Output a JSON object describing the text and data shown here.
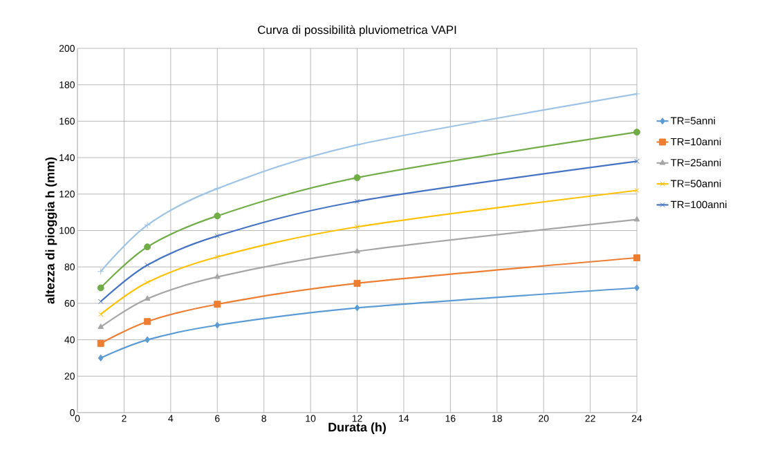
{
  "chart_data": {
    "type": "line",
    "title": "Curva di possibilità pluviometrica VAPI",
    "xlabel": "Durata (h)",
    "ylabel": "altezza di pioggia h (mm)",
    "x": [
      1,
      3,
      6,
      12,
      24
    ],
    "series": [
      {
        "name": "TR=5anni",
        "color": "#5b9bd5",
        "marker": "diamond",
        "values": [
          30,
          40,
          48,
          57.5,
          68.5
        ]
      },
      {
        "name": "TR=10anni",
        "color": "#ed7d31",
        "marker": "square",
        "values": [
          38,
          50,
          59.5,
          71,
          85
        ]
      },
      {
        "name": "TR=25anni",
        "color": "#a5a5a5",
        "marker": "triangle",
        "values": [
          47,
          62.5,
          74.5,
          88.5,
          106
        ]
      },
      {
        "name": "TR=50anni",
        "color": "#ffc000",
        "marker": "cross",
        "values": [
          54,
          71.5,
          85.5,
          102,
          122
        ]
      },
      {
        "name": "TR=100anni",
        "color": "#4472c4",
        "marker": "cross",
        "values": [
          61,
          81,
          97,
          116,
          138
        ]
      },
      {
        "color": "#70ad47",
        "marker": "circle",
        "values": [
          68.5,
          91,
          108,
          129,
          154
        ]
      },
      {
        "color": "#9dc3e6",
        "marker": "plus",
        "values": [
          77.5,
          103,
          123,
          147,
          175
        ]
      }
    ],
    "xlim": [
      0,
      24
    ],
    "ylim": [
      0,
      200
    ],
    "xticks": [
      0,
      2,
      4,
      6,
      8,
      10,
      12,
      14,
      16,
      18,
      20,
      22,
      24
    ],
    "yticks": [
      0,
      20,
      40,
      60,
      80,
      100,
      120,
      140,
      160,
      180,
      200
    ],
    "grid": true,
    "legend": "right",
    "line_style": "solid"
  }
}
